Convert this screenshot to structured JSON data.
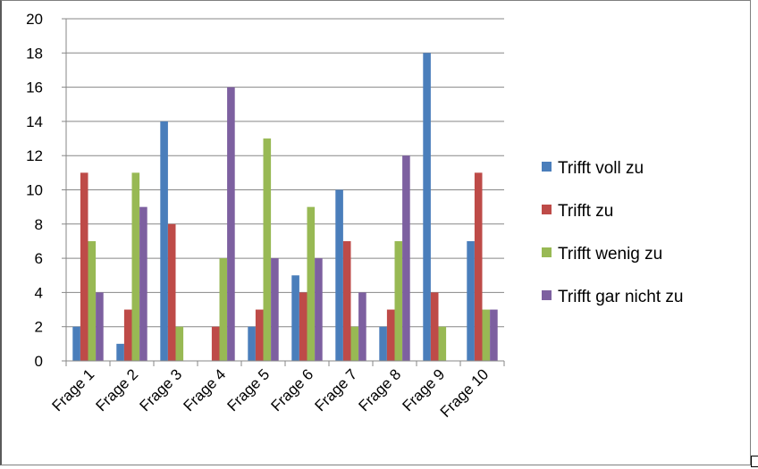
{
  "chart_data": {
    "type": "bar",
    "categories": [
      "Frage 1",
      "Frage 2",
      "Frage 3",
      "Frage 4",
      "Frage 5",
      "Frage 6",
      "Frage 7",
      "Frage 8",
      "Frage 9",
      "Frage 10"
    ],
    "series": [
      {
        "name": "Trifft voll zu",
        "color": "#4a7ebb",
        "values": [
          2,
          1,
          14,
          0,
          2,
          5,
          10,
          2,
          18,
          7
        ]
      },
      {
        "name": "Trifft zu",
        "color": "#be4b48",
        "values": [
          11,
          3,
          8,
          2,
          3,
          4,
          7,
          3,
          4,
          11
        ]
      },
      {
        "name": "Trifft wenig zu",
        "color": "#98b954",
        "values": [
          7,
          11,
          2,
          6,
          13,
          9,
          2,
          7,
          2,
          3
        ]
      },
      {
        "name": "Trifft gar nicht zu",
        "color": "#7d60a0",
        "values": [
          4,
          9,
          0,
          16,
          6,
          6,
          4,
          12,
          0,
          3
        ]
      }
    ],
    "title": "",
    "xlabel": "",
    "ylabel": "",
    "ylim": [
      0,
      20
    ],
    "yticks": [
      0,
      2,
      4,
      6,
      8,
      10,
      12,
      14,
      16,
      18,
      20
    ],
    "grid": true,
    "legend_position": "right"
  }
}
